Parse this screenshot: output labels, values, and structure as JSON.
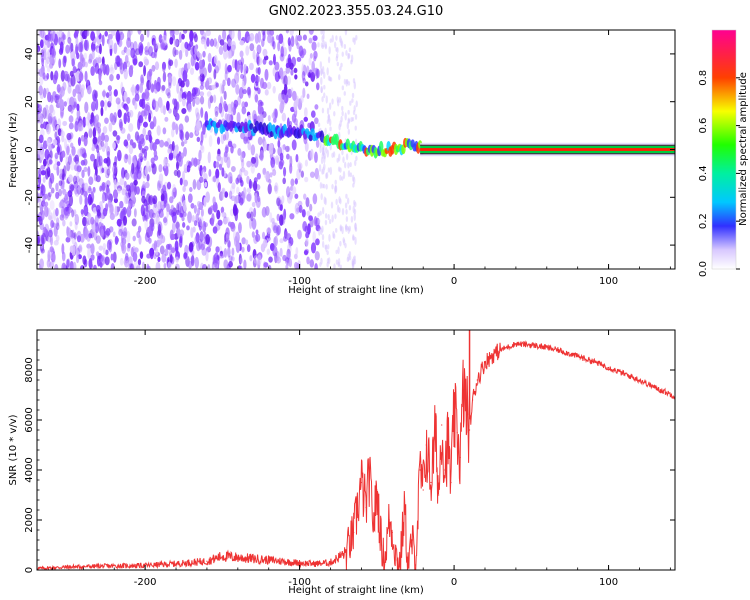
{
  "title": "GN02.2023.355.03.24.G10",
  "colors": {
    "snr_line": "#ee3333",
    "colorbar_stops": [
      "#b4b4ff",
      "#0000ff",
      "#00e0ff",
      "#00ff40",
      "#ffff00",
      "#ff3000",
      "#ff0080"
    ]
  },
  "chart_data": [
    {
      "type": "heatmap",
      "title": "",
      "xlabel": "Height of straight line (km)",
      "ylabel": "Frequency (Hz)",
      "xlim": [
        -270,
        143
      ],
      "ylim": [
        -50,
        50
      ],
      "x_ticks": [
        -200,
        -100,
        0,
        100
      ],
      "x_tick_labels": [
        "-200",
        "-100",
        "0",
        "100"
      ],
      "y_ticks": [
        -40,
        -20,
        0,
        20,
        40
      ],
      "y_tick_labels": [
        "-40",
        "-20",
        "0",
        "20",
        "40"
      ],
      "colorbar": {
        "label": "Normalized spectral amplitude",
        "range": [
          0,
          1
        ],
        "ticks": [
          0,
          0.2,
          0.4,
          0.6,
          0.8
        ],
        "tick_labels": [
          "0.0",
          "0.2",
          "0.4",
          "0.6",
          "0.8"
        ]
      },
      "features": {
        "noise_region_x": [
          -270,
          -88
        ],
        "noise_amplitude_range": [
          0.05,
          0.2
        ],
        "carrier_trace": [
          {
            "x": -160,
            "y": 10
          },
          {
            "x": -140,
            "y": 9
          },
          {
            "x": -120,
            "y": 8
          },
          {
            "x": -100,
            "y": 7
          },
          {
            "x": -85,
            "y": 5
          },
          {
            "x": -75,
            "y": 3
          },
          {
            "x": -65,
            "y": 1
          },
          {
            "x": -55,
            "y": -1
          },
          {
            "x": -45,
            "y": 0
          },
          {
            "x": -35,
            "y": 1
          },
          {
            "x": -28,
            "y": 2
          },
          {
            "x": -22,
            "y": 1
          },
          {
            "x": -20,
            "y": 0
          },
          {
            "x": 143,
            "y": 0
          }
        ]
      }
    },
    {
      "type": "line",
      "title": "",
      "xlabel": "Height of straight line (km)",
      "ylabel": "SNR (10 * v/v)",
      "xlim": [
        -270,
        143
      ],
      "ylim": [
        0,
        9600
      ],
      "x_ticks": [
        -200,
        -100,
        0,
        100
      ],
      "x_tick_labels": [
        "-200",
        "-100",
        "0",
        "100"
      ],
      "y_ticks": [
        0,
        2000,
        4000,
        6000,
        8000
      ],
      "y_tick_labels": [
        "0",
        "2000",
        "4000",
        "6000",
        "8000"
      ],
      "x": [
        -270,
        -250,
        -230,
        -200,
        -180,
        -160,
        -150,
        -140,
        -120,
        -100,
        -90,
        -80,
        -70,
        -65,
        -60,
        -57,
        -55,
        -52,
        -50,
        -47,
        -45,
        -42,
        -40,
        -37,
        -35,
        -32,
        -30,
        -27,
        -25,
        -22,
        -20,
        -18,
        -15,
        -12,
        -10,
        -8,
        -6,
        -4,
        -2,
        0,
        2,
        4,
        6,
        8,
        10,
        12,
        15,
        20,
        25,
        30,
        40,
        50,
        60,
        70,
        80,
        90,
        100,
        110,
        120,
        130,
        143
      ],
      "y": [
        60,
        120,
        150,
        180,
        250,
        350,
        550,
        500,
        400,
        280,
        250,
        300,
        700,
        1500,
        3500,
        2500,
        3800,
        1800,
        3200,
        1000,
        300,
        2000,
        1500,
        400,
        300,
        2500,
        200,
        1200,
        200,
        4000,
        3200,
        5000,
        3500,
        5500,
        3000,
        5800,
        4000,
        5200,
        3500,
        6200,
        5500,
        4500,
        7200,
        6400,
        5600,
        6800,
        7600,
        8300,
        8600,
        8800,
        9050,
        9000,
        8900,
        8750,
        8550,
        8350,
        8100,
        7850,
        7600,
        7300,
        6950
      ]
    }
  ]
}
